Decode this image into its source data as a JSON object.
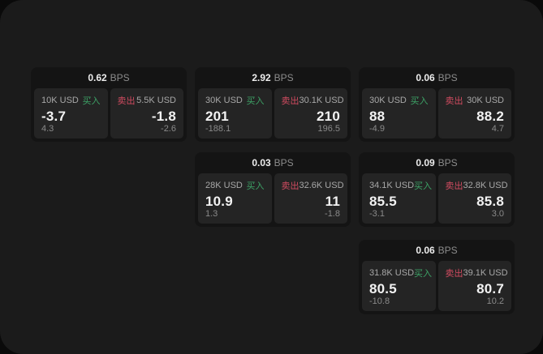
{
  "labels": {
    "bps": "BPS",
    "buy": "买入",
    "sell": "卖出"
  },
  "colors": {
    "buy": "#3da266",
    "sell": "#d14b60",
    "page_bg": "#1b1b1b",
    "card_bg": "#141414",
    "panel_bg": "#242424",
    "value_text": "#f2f2f2",
    "muted_text": "#8a8a8a"
  },
  "cards": [
    {
      "bps": "0.62",
      "buy_size": "10K USD",
      "buy_value": "-3.7",
      "buy_sub": "4.3",
      "sell_size": "5.5K USD",
      "sell_value": "-1.8",
      "sell_sub": "-2.6"
    },
    {
      "bps": "2.92",
      "buy_size": "30K USD",
      "buy_value": "201",
      "buy_sub": "-188.1",
      "sell_size": "30.1K USD",
      "sell_value": "210",
      "sell_sub": "196.5"
    },
    {
      "bps": "0.06",
      "buy_size": "30K USD",
      "buy_value": "88",
      "buy_sub": "-4.9",
      "sell_size": "30K USD",
      "sell_value": "88.2",
      "sell_sub": "4.7"
    },
    {
      "bps": "0.03",
      "buy_size": "28K USD",
      "buy_value": "10.9",
      "buy_sub": "1.3",
      "sell_size": "32.6K USD",
      "sell_value": "11",
      "sell_sub": "-1.8"
    },
    {
      "bps": "0.09",
      "buy_size": "34.1K USD",
      "buy_value": "85.5",
      "buy_sub": "-3.1",
      "sell_size": "32.8K USD",
      "sell_value": "85.8",
      "sell_sub": "3.0"
    },
    {
      "bps": "0.06",
      "buy_size": "31.8K USD",
      "buy_value": "80.5",
      "buy_sub": "-10.8",
      "sell_size": "39.1K USD",
      "sell_value": "80.7",
      "sell_sub": "10.2"
    }
  ]
}
